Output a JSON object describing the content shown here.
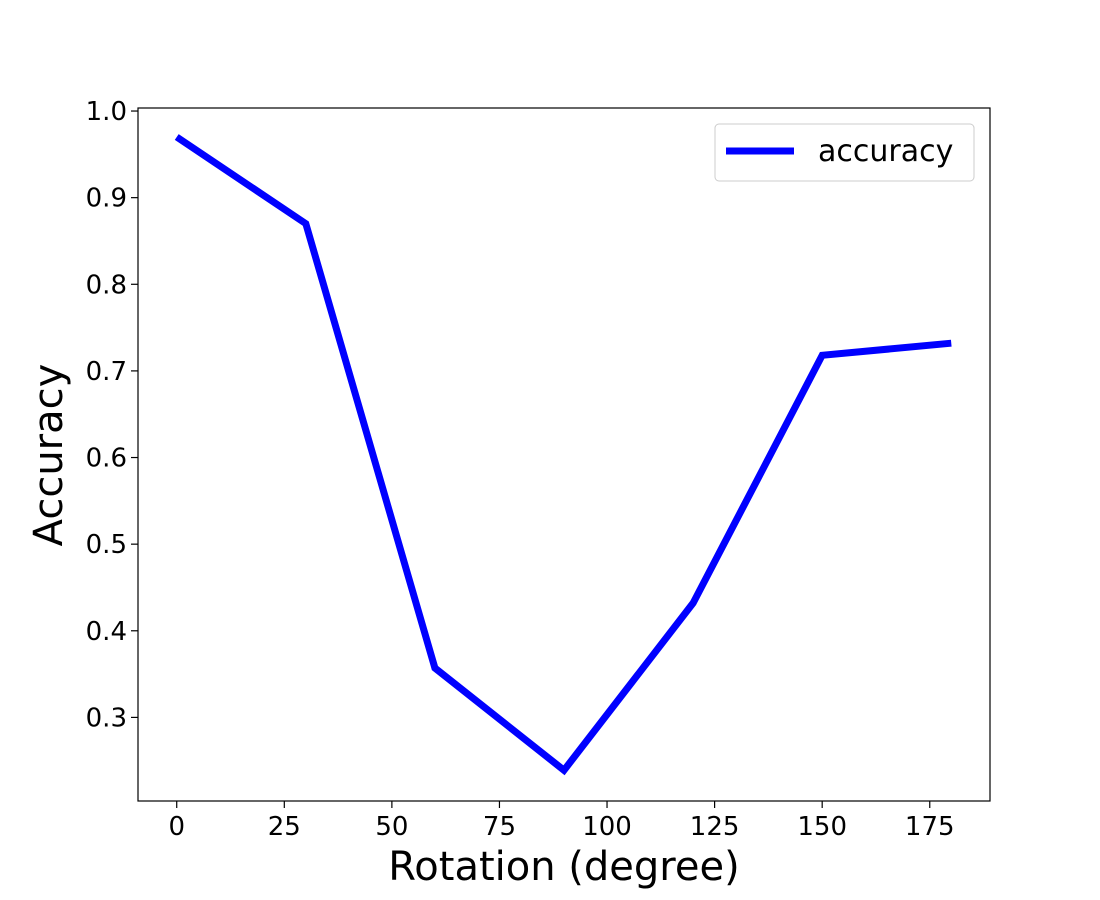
{
  "chart_data": {
    "type": "line",
    "title": "",
    "xlabel": "Rotation (degree)",
    "ylabel": "Accuracy",
    "x": [
      0,
      30,
      60,
      90,
      120,
      150,
      180
    ],
    "series": [
      {
        "name": "accuracy",
        "color": "#0000ff",
        "values": [
          0.97,
          0.87,
          0.357,
          0.239,
          0.432,
          0.718,
          0.732
        ]
      }
    ],
    "xlim": [
      -9,
      189
    ],
    "ylim": [
      0.2035,
      1.0035
    ],
    "xticks": [
      0,
      25,
      50,
      75,
      100,
      125,
      150,
      175
    ],
    "yticks": [
      0.3,
      0.4,
      0.5,
      0.6,
      0.7,
      0.8,
      0.9,
      1.0
    ],
    "xtick_labels": [
      "0",
      "25",
      "50",
      "75",
      "100",
      "125",
      "150",
      "175"
    ],
    "ytick_labels": [
      "0.3",
      "0.4",
      "0.5",
      "0.6",
      "0.7",
      "0.8",
      "0.9",
      "1.0"
    ],
    "grid": false,
    "legend_position": "top-right"
  }
}
